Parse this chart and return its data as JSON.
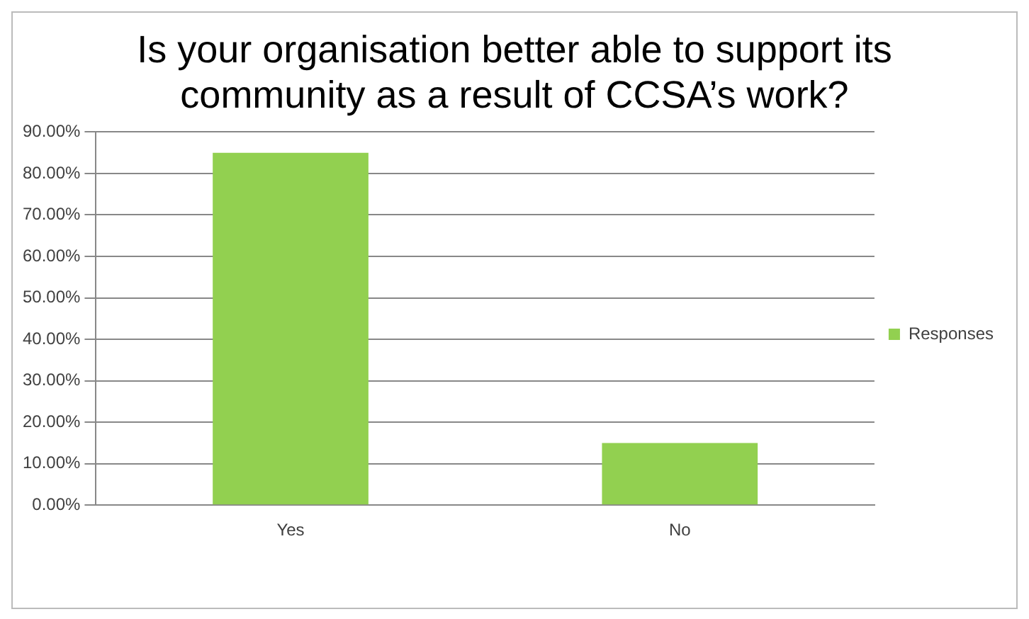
{
  "chart_data": {
    "type": "bar",
    "title": "Is your organisation better able to support its community as a result of CCSA’s work?",
    "categories": [
      "Yes",
      "No"
    ],
    "series": [
      {
        "name": "Responses",
        "color": "#92d050",
        "values": [
          85,
          15
        ]
      }
    ],
    "ylim": [
      0,
      90
    ],
    "yticks": [
      {
        "value": 0,
        "label": "0.00%"
      },
      {
        "value": 10,
        "label": "10.00%"
      },
      {
        "value": 20,
        "label": "20.00%"
      },
      {
        "value": 30,
        "label": "30.00%"
      },
      {
        "value": 40,
        "label": "40.00%"
      },
      {
        "value": 50,
        "label": "50.00%"
      },
      {
        "value": 60,
        "label": "60.00%"
      },
      {
        "value": 70,
        "label": "70.00%"
      },
      {
        "value": 80,
        "label": "80.00%"
      },
      {
        "value": 90,
        "label": "90.00%"
      }
    ],
    "grid": "y",
    "legend": "right"
  }
}
